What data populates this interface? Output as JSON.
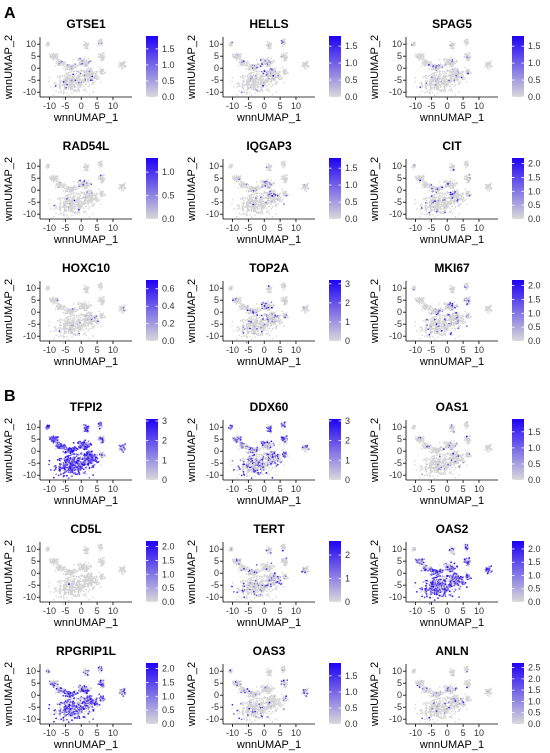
{
  "figure": {
    "panels": [
      {
        "letter": "A",
        "plots": [
          {
            "title": "GTSE1",
            "xlabel": "wnnUMAP_1",
            "ylabel": "wnnUMAP_2",
            "legend_ticks": [
              "0.0",
              "0.5",
              "1.0",
              "1.5"
            ],
            "legend_max": 1.9,
            "density": 0.06,
            "hotspot": "center"
          },
          {
            "title": "HELLS",
            "xlabel": "wnnUMAP_1",
            "ylabel": "wnnUMAP_2",
            "legend_ticks": [
              "0.0",
              "0.5",
              "1.0",
              "1.5"
            ],
            "legend_max": 1.8,
            "density": 0.07,
            "hotspot": "center"
          },
          {
            "title": "SPAG5",
            "xlabel": "wnnUMAP_1",
            "ylabel": "wnnUMAP_2",
            "legend_ticks": [
              "0.0",
              "0.5",
              "1.0",
              "1.5"
            ],
            "legend_max": 1.8,
            "density": 0.05,
            "hotspot": "center"
          },
          {
            "title": "RAD54L",
            "xlabel": "wnnUMAP_1",
            "ylabel": "wnnUMAP_2",
            "legend_ticks": [
              "0.0",
              "0.5",
              "1.0"
            ],
            "legend_max": 1.3,
            "density": 0.04,
            "hotspot": "center"
          },
          {
            "title": "IQGAP3",
            "xlabel": "wnnUMAP_1",
            "ylabel": "wnnUMAP_2",
            "legend_ticks": [
              "0.0",
              "0.5",
              "1.0",
              "1.5"
            ],
            "legend_max": 1.8,
            "density": 0.04,
            "hotspot": "center"
          },
          {
            "title": "CIT",
            "xlabel": "wnnUMAP_1",
            "ylabel": "wnnUMAP_2",
            "legend_ticks": [
              "0.0",
              "0.5",
              "1.0",
              "1.5",
              "2.0"
            ],
            "legend_max": 2.2,
            "density": 0.05,
            "hotspot": "center"
          },
          {
            "title": "HOXC10",
            "xlabel": "wnnUMAP_1",
            "ylabel": "wnnUMAP_2",
            "legend_ticks": [
              "0.0",
              "0.2",
              "0.4",
              "0.6"
            ],
            "legend_max": 0.7,
            "density": 0.01,
            "hotspot": "none"
          },
          {
            "title": "TOP2A",
            "xlabel": "wnnUMAP_1",
            "ylabel": "wnnUMAP_2",
            "legend_ticks": [
              "0",
              "1",
              "2",
              "3"
            ],
            "legend_max": 3.2,
            "density": 0.1,
            "hotspot": "center"
          },
          {
            "title": "MKI67",
            "xlabel": "wnnUMAP_1",
            "ylabel": "wnnUMAP_2",
            "legend_ticks": [
              "0.0",
              "0.5",
              "1.0",
              "1.5",
              "2.0"
            ],
            "legend_max": 2.2,
            "density": 0.09,
            "hotspot": "center"
          }
        ]
      },
      {
        "letter": "B",
        "plots": [
          {
            "title": "TFPI2",
            "xlabel": "wnnUMAP_1",
            "ylabel": "wnnUMAP_2",
            "legend_ticks": [
              "0",
              "1",
              "2",
              "3"
            ],
            "legend_max": 3.1,
            "density": 0.55,
            "hotspot": "left"
          },
          {
            "title": "DDX60",
            "xlabel": "wnnUMAP_1",
            "ylabel": "wnnUMAP_2",
            "legend_ticks": [
              "0",
              "1",
              "2",
              "3"
            ],
            "legend_max": 3.1,
            "density": 0.3,
            "hotspot": "top"
          },
          {
            "title": "OAS1",
            "xlabel": "wnnUMAP_1",
            "ylabel": "wnnUMAP_2",
            "legend_ticks": [
              "0.0",
              "0.5",
              "1.0",
              "1.5"
            ],
            "legend_max": 1.9,
            "density": 0.04,
            "hotspot": "none"
          },
          {
            "title": "CD5L",
            "xlabel": "wnnUMAP_1",
            "ylabel": "wnnUMAP_2",
            "legend_ticks": [
              "0.0",
              "0.5",
              "1.0",
              "1.5",
              "2.0"
            ],
            "legend_max": 2.2,
            "density": 0.005,
            "hotspot": "none"
          },
          {
            "title": "TERT",
            "xlabel": "wnnUMAP_1",
            "ylabel": "wnnUMAP_2",
            "legend_ticks": [
              "0",
              "1",
              "2"
            ],
            "legend_max": 2.6,
            "density": 0.12,
            "hotspot": "none"
          },
          {
            "title": "OAS2",
            "xlabel": "wnnUMAP_1",
            "ylabel": "wnnUMAP_2",
            "legend_ticks": [
              "0.0",
              "0.5",
              "1.0",
              "1.5",
              "2.0"
            ],
            "legend_max": 2.3,
            "density": 0.4,
            "hotspot": "bottom"
          },
          {
            "title": "RPGRIP1L",
            "xlabel": "wnnUMAP_1",
            "ylabel": "wnnUMAP_2",
            "legend_ticks": [
              "0.0",
              "0.5",
              "1.0",
              "1.5",
              "2.0"
            ],
            "legend_max": 2.2,
            "density": 0.35,
            "hotspot": "bottom"
          },
          {
            "title": "OAS3",
            "xlabel": "wnnUMAP_1",
            "ylabel": "wnnUMAP_2",
            "legend_ticks": [
              "0.0",
              "0.5",
              "1.0",
              "1.5"
            ],
            "legend_max": 1.9,
            "density": 0.07,
            "hotspot": "right"
          },
          {
            "title": "ANLN",
            "xlabel": "wnnUMAP_1",
            "ylabel": "wnnUMAP_2",
            "legend_ticks": [
              "0.0",
              "0.5",
              "1.0",
              "1.5",
              "2.0",
              "2.5"
            ],
            "legend_max": 2.7,
            "density": 0.06,
            "hotspot": "center"
          }
        ]
      }
    ]
  },
  "chart_data": {
    "type": "scatter",
    "xticks": [
      -10,
      -5,
      0,
      5,
      10
    ],
    "yticks": [
      10,
      5,
      0,
      -5,
      -10
    ],
    "xlim": [
      -13,
      16
    ],
    "ylim": [
      -12,
      13
    ],
    "colors": {
      "low": "#d9d9d9",
      "high": "#1f00f5",
      "background_points": "#d3d3d3"
    },
    "clusters": [
      {
        "cx": -10.5,
        "cy": 10.0,
        "rx": 0.6,
        "ry": 1.0,
        "n": 18
      },
      {
        "cx": -8.5,
        "cy": 5.0,
        "rx": 1.3,
        "ry": 1.1,
        "n": 45
      },
      {
        "cx": -6.5,
        "cy": 2.0,
        "rx": 1.5,
        "ry": 1.2,
        "n": 50
      },
      {
        "cx": -3.5,
        "cy": 0.5,
        "rx": 1.8,
        "ry": 1.5,
        "n": 70
      },
      {
        "cx": -3.0,
        "cy": -6.0,
        "rx": 4.5,
        "ry": 3.6,
        "n": 330
      },
      {
        "cx": 2.5,
        "cy": -3.0,
        "rx": 2.8,
        "ry": 3.0,
        "n": 180
      },
      {
        "cx": 0.5,
        "cy": 2.5,
        "rx": 2.0,
        "ry": 1.6,
        "n": 90
      },
      {
        "cx": 1.5,
        "cy": 9.5,
        "rx": 0.7,
        "ry": 1.4,
        "n": 30
      },
      {
        "cx": 6.0,
        "cy": 11.0,
        "rx": 0.6,
        "ry": 1.3,
        "n": 24
      },
      {
        "cx": 6.5,
        "cy": 4.5,
        "rx": 0.9,
        "ry": 1.6,
        "n": 45
      },
      {
        "cx": 6.5,
        "cy": -1.5,
        "rx": 0.8,
        "ry": 1.2,
        "n": 28
      },
      {
        "cx": 13.0,
        "cy": 1.5,
        "rx": 0.9,
        "ry": 1.3,
        "n": 36
      }
    ]
  }
}
